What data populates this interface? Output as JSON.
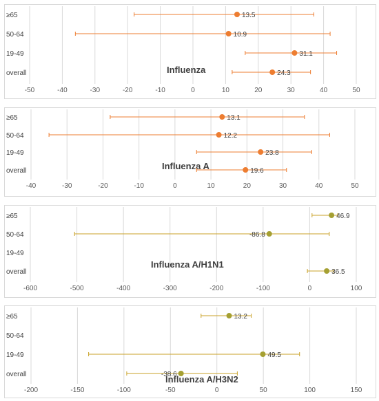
{
  "chart_data": [
    {
      "type": "forest",
      "title": "Influenza",
      "categories": [
        "≥65",
        "50-64",
        "19-49",
        "overall"
      ],
      "values": [
        13.5,
        10.9,
        31.1,
        24.3
      ],
      "value_labels": [
        "13.5",
        "10.9",
        "31.1",
        "24.3"
      ],
      "ci_lower": [
        -18,
        -36,
        16,
        12
      ],
      "ci_upper": [
        37,
        42,
        44,
        36
      ],
      "xlim": [
        -50,
        50
      ],
      "xticks": [
        -50,
        -40,
        -30,
        -20,
        -10,
        0,
        10,
        20,
        30,
        40,
        50
      ],
      "xtick_labels": [
        "-50",
        "-40",
        "-30",
        "-20",
        "-10",
        "0",
        "10",
        "20",
        "30",
        "40",
        "50"
      ],
      "marker_color": "#ed7d31",
      "line_color": "#ed7d31",
      "grid": true
    },
    {
      "type": "forest",
      "title": "Influenza A",
      "categories": [
        "≥65",
        "50-64",
        "19-49",
        "overall"
      ],
      "values": [
        13.1,
        12.2,
        23.8,
        19.6
      ],
      "value_labels": [
        "13.1",
        "12.2",
        "23.8",
        "19.6"
      ],
      "ci_lower": [
        -18,
        -35,
        6,
        6
      ],
      "ci_upper": [
        36,
        43,
        38,
        31
      ],
      "xlim": [
        -40,
        50
      ],
      "xticks": [
        -40,
        -30,
        -20,
        -10,
        0,
        10,
        20,
        30,
        40,
        50
      ],
      "xtick_labels": [
        "-40",
        "-30",
        "-20",
        "-10",
        "0",
        "10",
        "20",
        "30",
        "40",
        "50"
      ],
      "marker_color": "#ed7d31",
      "line_color": "#ed7d31",
      "grid": true
    },
    {
      "type": "forest",
      "title": "Influenza A/H1N1",
      "categories": [
        "≥65",
        "50-64",
        "19-49",
        "overall"
      ],
      "values": [
        46.9,
        -86.8,
        null,
        36.5
      ],
      "value_labels": [
        "46.9",
        "-86.8",
        "",
        "36.5"
      ],
      "ci_lower": [
        5,
        -505,
        null,
        -5
      ],
      "ci_upper": [
        60,
        42,
        null,
        52
      ],
      "xlim": [
        -600,
        100
      ],
      "xticks": [
        -600,
        -500,
        -400,
        -300,
        -200,
        -100,
        0,
        100
      ],
      "xtick_labels": [
        "-600",
        "-500",
        "-400",
        "-300",
        "-200",
        "-100",
        "0",
        "100"
      ],
      "marker_color": "#a5a032",
      "line_color": "#c9a227",
      "grid": true
    },
    {
      "type": "forest",
      "title": "Influenza A/H3N2",
      "categories": [
        "≥65",
        "50-64",
        "19-49",
        "overall"
      ],
      "values": [
        13.2,
        null,
        49.5,
        -38.6
      ],
      "value_labels": [
        "13.2",
        "",
        "49.5",
        "-38.6"
      ],
      "ci_lower": [
        -17,
        null,
        -138,
        -97
      ],
      "ci_upper": [
        37,
        null,
        89,
        22
      ],
      "xlim": [
        -200,
        150
      ],
      "xticks": [
        -200,
        -150,
        -100,
        -50,
        0,
        50,
        100,
        150
      ],
      "xtick_labels": [
        "-200",
        "-150",
        "-100",
        "-50",
        "0",
        "50",
        "100",
        "150"
      ],
      "marker_color": "#a5a032",
      "line_color": "#c9a227",
      "grid": true
    }
  ]
}
